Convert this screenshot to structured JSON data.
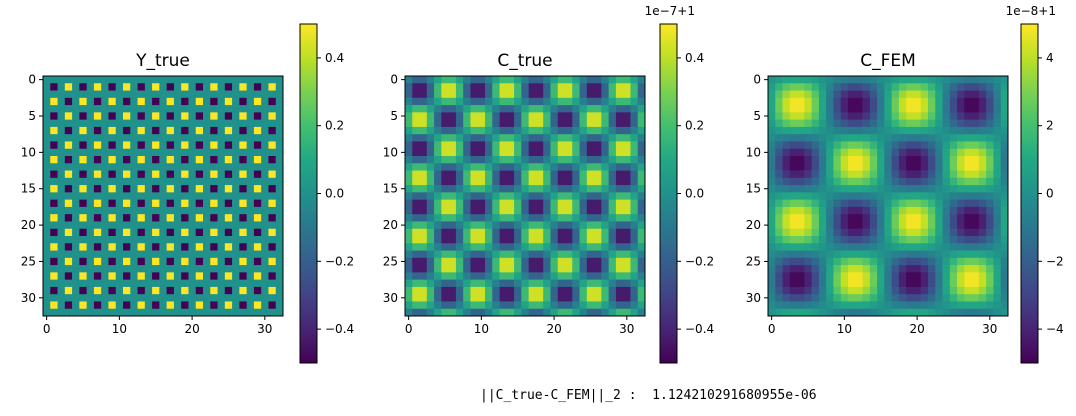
{
  "chart_data": [
    {
      "type": "heatmap",
      "title": "Y_true",
      "grid_size": [
        33,
        33
      ],
      "pattern": "checker",
      "pattern_period": 4,
      "value_range": [
        -0.5,
        0.5
      ],
      "x_ticks": [
        "0",
        "10",
        "20",
        "30"
      ],
      "y_ticks": [
        "0",
        "5",
        "10",
        "15",
        "20",
        "25",
        "30"
      ],
      "colorbar": {
        "offset_text": "",
        "range": [
          -0.5,
          0.5
        ],
        "tick_values": [
          0.4,
          0.2,
          0.0,
          -0.2,
          -0.4
        ],
        "tick_labels": [
          "0.4",
          "0.2",
          "0.0",
          "−0.2",
          "−0.4"
        ]
      },
      "colormap": "viridis"
    },
    {
      "type": "heatmap",
      "title": "C_true",
      "grid_size": [
        33,
        33
      ],
      "pattern": "cosine",
      "pattern_period": 8,
      "value_range": [
        -0.5,
        0.5
      ],
      "x_ticks": [
        "0",
        "10",
        "20",
        "30"
      ],
      "y_ticks": [
        "0",
        "5",
        "10",
        "15",
        "20",
        "25",
        "30"
      ],
      "colorbar": {
        "offset_text": "1e−7+1",
        "range": [
          -0.5,
          0.5
        ],
        "tick_values": [
          0.4,
          0.2,
          0.0,
          -0.2,
          -0.4
        ],
        "tick_labels": [
          "0.4",
          "0.2",
          "0.0",
          "−0.2",
          "−0.4"
        ]
      },
      "colormap": "viridis"
    },
    {
      "type": "heatmap",
      "title": "C_FEM",
      "grid_size": [
        33,
        33
      ],
      "pattern": "cosine",
      "pattern_period": 16,
      "value_range": [
        -5,
        5
      ],
      "x_ticks": [
        "0",
        "10",
        "20",
        "30"
      ],
      "y_ticks": [
        "0",
        "5",
        "10",
        "15",
        "20",
        "25",
        "30"
      ],
      "colorbar": {
        "offset_text": "1e−8+1",
        "range": [
          -5,
          5
        ],
        "tick_values": [
          4,
          2,
          0,
          -2,
          -4
        ],
        "tick_labels": [
          "4",
          "2",
          "0",
          "−2",
          "−4"
        ]
      },
      "colormap": "viridis"
    }
  ],
  "output_text": "||C_true-C_FEM||_2 :  1.124210291680955e-06"
}
